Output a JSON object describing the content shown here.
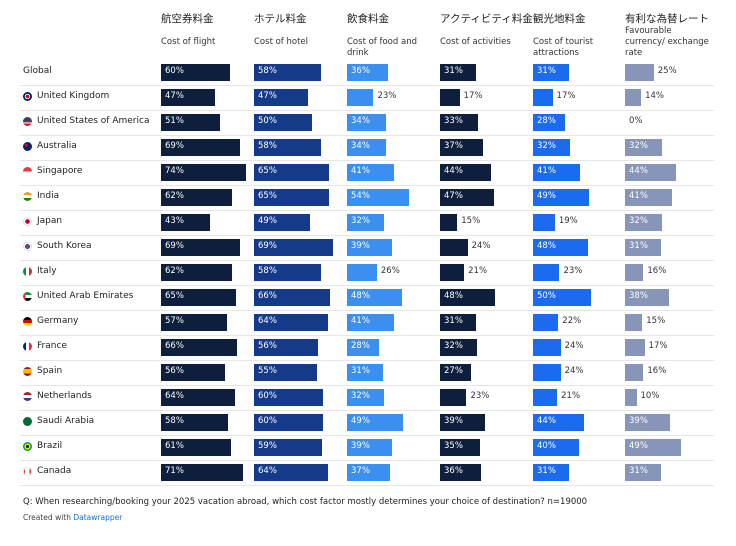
{
  "colors": {
    "flight": "#0d1f3c",
    "hotel": "#153a8a",
    "food": "#3b8ff0",
    "activities": "#0d1f3c",
    "attractions": "#1a6bf0",
    "currency": "#8796b8",
    "dark_text": "#ffffff",
    "outside_text": "#333333"
  },
  "chart_data": {
    "type": "table",
    "columns": [
      {
        "key": "flight",
        "title": "航空券料金",
        "subtitle": "Cost of flight"
      },
      {
        "key": "hotel",
        "title": "ホテル料金",
        "subtitle": "Cost of hotel"
      },
      {
        "key": "food",
        "title": "飲食料金",
        "subtitle": "Cost of food and drink"
      },
      {
        "key": "activities",
        "title": "アクティビティ料金",
        "subtitle": "Cost of activities"
      },
      {
        "key": "attractions",
        "title": "観光地料金",
        "subtitle": "Cost of tourist attractions"
      },
      {
        "key": "currency",
        "title": "有利な為替レート",
        "subtitle": "Favourable currency/ exchange rate"
      }
    ],
    "unit": "%",
    "rows": [
      {
        "country": "Global",
        "flag": "",
        "values": [
          60,
          58,
          36,
          31,
          31,
          25
        ]
      },
      {
        "country": "United Kingdom",
        "flag": "uk",
        "values": [
          47,
          47,
          23,
          17,
          17,
          14
        ]
      },
      {
        "country": "United States of America",
        "flag": "us",
        "values": [
          51,
          50,
          34,
          33,
          28,
          0
        ]
      },
      {
        "country": "Australia",
        "flag": "au",
        "values": [
          69,
          58,
          34,
          37,
          32,
          32
        ]
      },
      {
        "country": "Singapore",
        "flag": "sg",
        "values": [
          74,
          65,
          41,
          44,
          41,
          44
        ]
      },
      {
        "country": "India",
        "flag": "in",
        "values": [
          62,
          65,
          54,
          47,
          49,
          41
        ]
      },
      {
        "country": "Japan",
        "flag": "jp",
        "values": [
          43,
          49,
          32,
          15,
          19,
          32
        ]
      },
      {
        "country": "South Korea",
        "flag": "kr",
        "values": [
          69,
          69,
          39,
          24,
          48,
          31
        ]
      },
      {
        "country": "Italy",
        "flag": "it",
        "values": [
          62,
          58,
          26,
          21,
          23,
          16
        ]
      },
      {
        "country": "United Arab Emirates",
        "flag": "ae",
        "values": [
          65,
          66,
          48,
          48,
          50,
          38
        ]
      },
      {
        "country": "Germany",
        "flag": "de",
        "values": [
          57,
          64,
          41,
          31,
          22,
          15
        ]
      },
      {
        "country": "France",
        "flag": "fr",
        "values": [
          66,
          56,
          28,
          32,
          24,
          17
        ]
      },
      {
        "country": "Spain",
        "flag": "es",
        "values": [
          56,
          55,
          31,
          27,
          24,
          16
        ]
      },
      {
        "country": "Netherlands",
        "flag": "nl",
        "values": [
          64,
          60,
          32,
          23,
          21,
          10
        ]
      },
      {
        "country": "Saudi Arabia",
        "flag": "sa",
        "values": [
          58,
          60,
          49,
          39,
          44,
          39
        ]
      },
      {
        "country": "Brazil",
        "flag": "br",
        "values": [
          61,
          59,
          39,
          35,
          40,
          49
        ]
      },
      {
        "country": "Canada",
        "flag": "ca",
        "values": [
          71,
          64,
          37,
          36,
          31,
          31
        ]
      }
    ]
  },
  "footer": {
    "question": "Q: When researching/booking your 2025 vacation abroad, which cost factor mostly determines your choice of destination?  n=19000",
    "created_prefix": "Created with ",
    "created_link": "Datawrapper"
  }
}
